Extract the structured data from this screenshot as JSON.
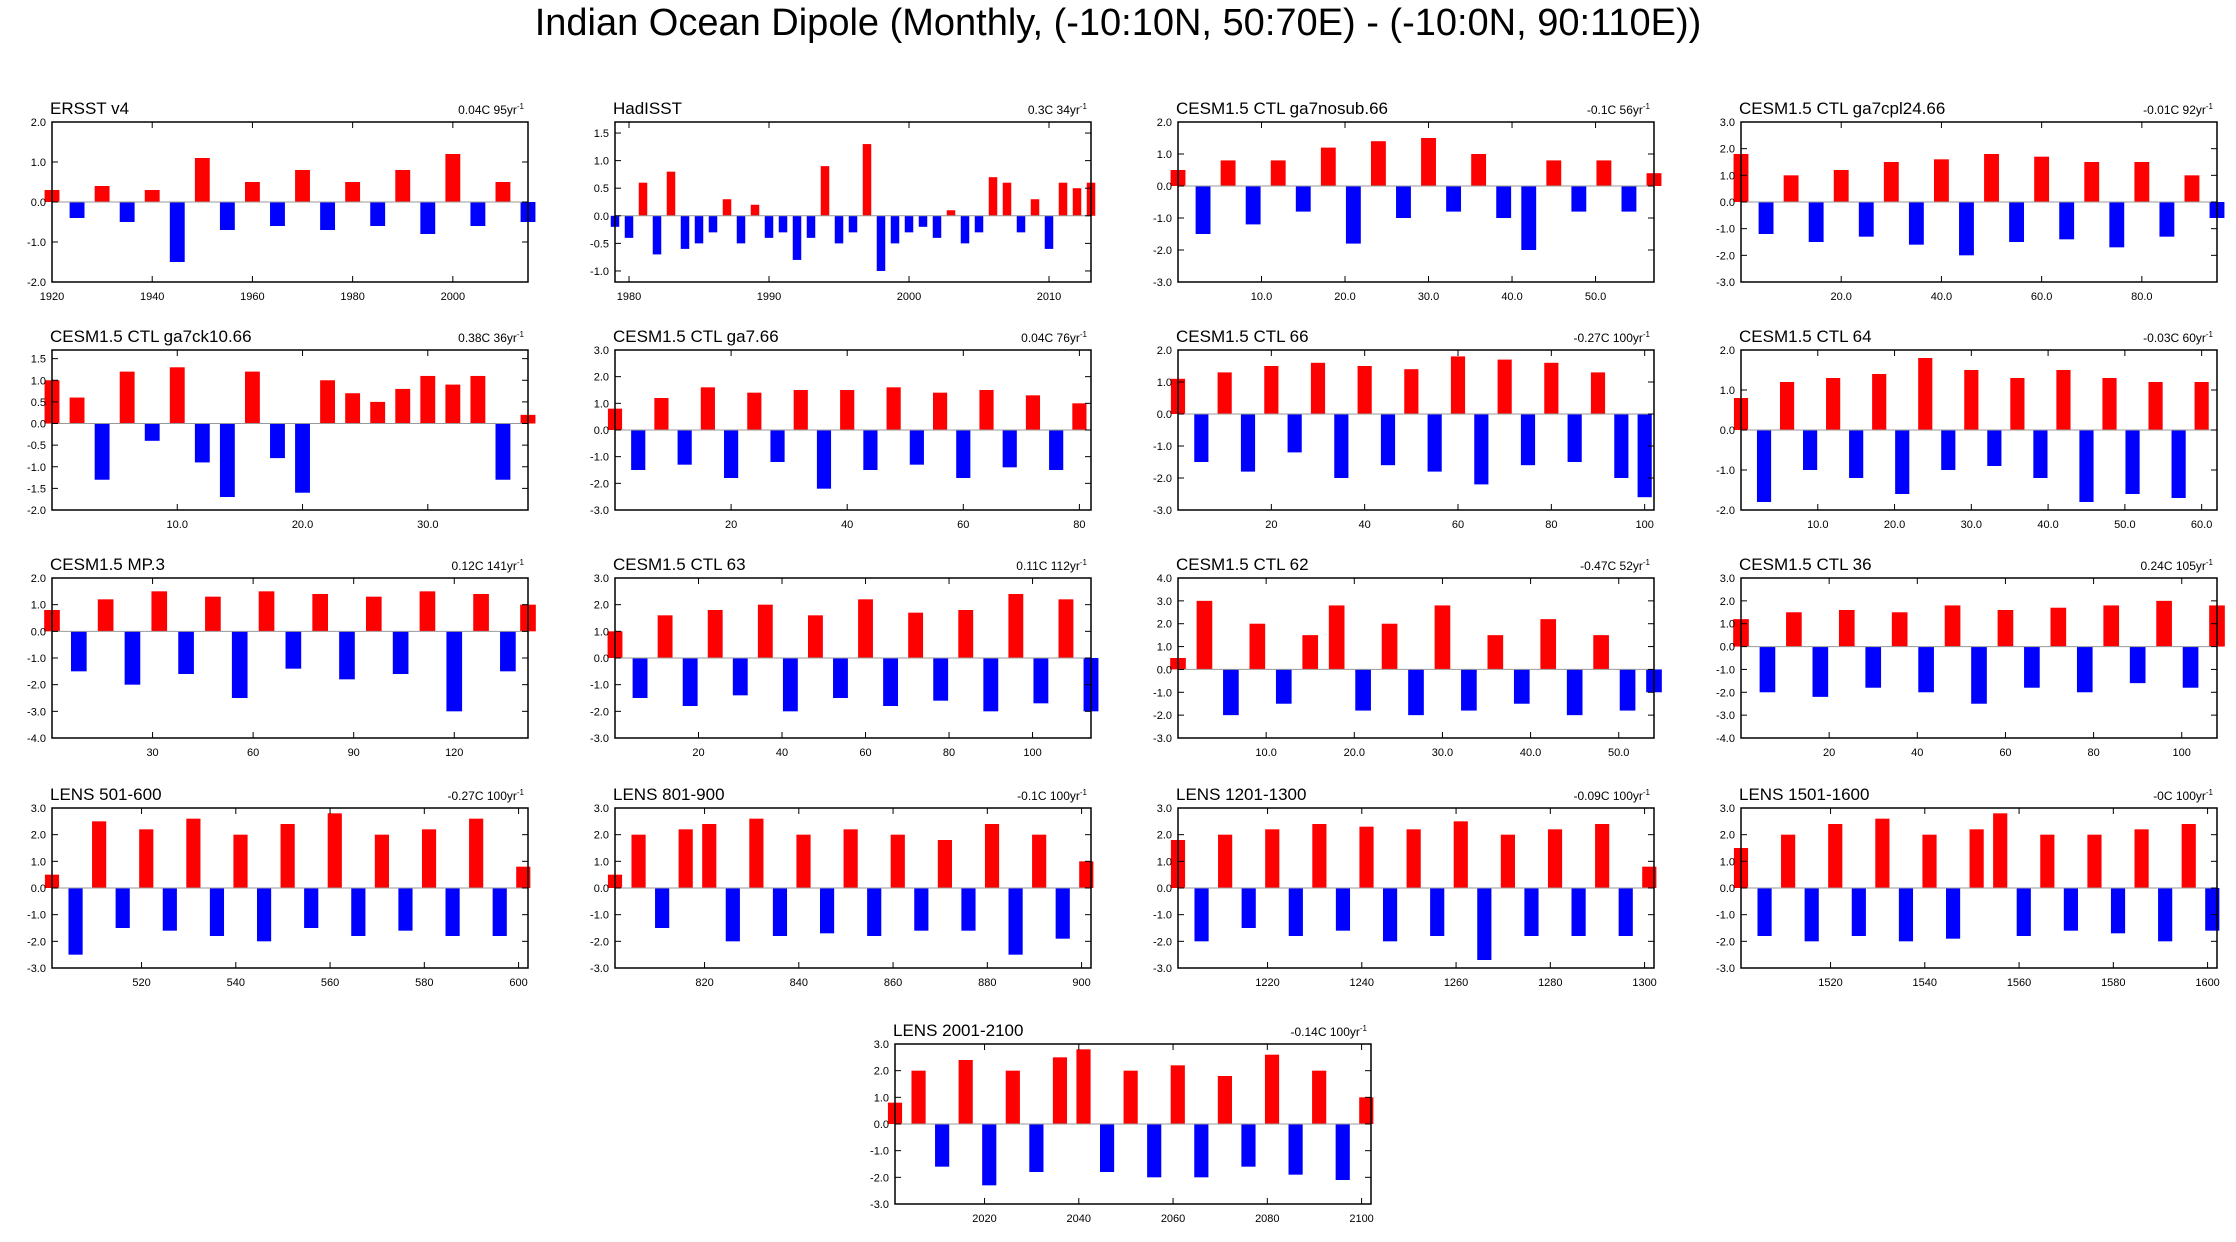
{
  "title": "Indian Ocean Dipole (Monthly, (-10:10N, 50:70E) - (-10:0N, 90:110E))",
  "colors": {
    "positive": "#ff0000",
    "negative": "#0000ff",
    "zero_line": "#999999",
    "frame": "#000000"
  },
  "chart_data": [
    {
      "type": "area",
      "title": "ERSST v4",
      "trend": "0.04C",
      "span": "95yr",
      "x_range": [
        1920,
        2015
      ],
      "ylim": [
        -2.0,
        2.0
      ],
      "y_ticks": [
        "2.0",
        "1.0",
        "0.0",
        "-1.0",
        "-2.0"
      ],
      "x_ticks": [
        "1920",
        "1940",
        "1960",
        "1980",
        "2000"
      ],
      "x": [
        1920,
        1925,
        1930,
        1935,
        1940,
        1945,
        1950,
        1955,
        1960,
        1965,
        1970,
        1975,
        1980,
        1985,
        1990,
        1995,
        2000,
        2005,
        2010,
        2015
      ],
      "y": [
        0.3,
        -0.4,
        0.4,
        -0.5,
        0.3,
        -1.5,
        1.1,
        -0.7,
        0.5,
        -0.6,
        0.8,
        -0.7,
        0.5,
        -0.6,
        0.8,
        -0.8,
        1.2,
        -0.6,
        0.5,
        -0.5
      ]
    },
    {
      "type": "area",
      "title": "HadISST",
      "trend": "0.3C",
      "span": "34yr",
      "x_range": [
        1979,
        2013
      ],
      "ylim": [
        -1.2,
        1.7
      ],
      "y_ticks": [
        "1.5",
        "1.0",
        "0.5",
        "0.0",
        "-0.5",
        "-1.0"
      ],
      "x_ticks": [
        "1980",
        "1990",
        "2000",
        "2010"
      ],
      "x": [
        1979,
        1980,
        1981,
        1982,
        1983,
        1984,
        1985,
        1986,
        1987,
        1988,
        1989,
        1990,
        1991,
        1992,
        1993,
        1994,
        1995,
        1996,
        1997,
        1998,
        1999,
        2000,
        2001,
        2002,
        2003,
        2004,
        2005,
        2006,
        2007,
        2008,
        2009,
        2010,
        2011,
        2012,
        2013
      ],
      "y": [
        -0.2,
        -0.4,
        0.6,
        -0.7,
        0.8,
        -0.6,
        -0.5,
        -0.3,
        0.3,
        -0.5,
        0.2,
        -0.4,
        -0.3,
        -0.8,
        -0.4,
        0.9,
        -0.5,
        -0.3,
        1.3,
        -1.0,
        -0.5,
        -0.3,
        -0.2,
        -0.4,
        0.1,
        -0.5,
        -0.3,
        0.7,
        0.6,
        -0.3,
        0.3,
        -0.6,
        0.6,
        0.5,
        0.6
      ]
    },
    {
      "type": "area",
      "title": "CESM1.5 CTL ga7nosub.66",
      "trend": "-0.1C",
      "span": "56yr",
      "x_range": [
        0,
        57
      ],
      "ylim": [
        -3.0,
        2.0
      ],
      "y_ticks": [
        "2.0",
        "1.0",
        "0.0",
        "-1.0",
        "-2.0",
        "-3.0"
      ],
      "x_ticks": [
        "10.0",
        "20.0",
        "30.0",
        "40.0",
        "50.0"
      ],
      "x": [
        0,
        3,
        6,
        9,
        12,
        15,
        18,
        21,
        24,
        27,
        30,
        33,
        36,
        39,
        42,
        45,
        48,
        51,
        54,
        57
      ],
      "y": [
        0.5,
        -1.5,
        0.8,
        -1.2,
        0.8,
        -0.8,
        1.2,
        -1.8,
        1.4,
        -1.0,
        1.5,
        -0.8,
        1.0,
        -1.0,
        -2.0,
        0.8,
        -0.8,
        0.8,
        -0.8,
        0.4
      ]
    },
    {
      "type": "area",
      "title": "CESM1.5 CTL ga7cpl24.66",
      "trend": "-0.01C",
      "span": "92yr",
      "x_range": [
        0,
        95
      ],
      "ylim": [
        -3.0,
        3.0
      ],
      "y_ticks": [
        "3.0",
        "2.0",
        "1.0",
        "0.0",
        "-1.0",
        "-2.0",
        "-3.0"
      ],
      "x_ticks": [
        "20.0",
        "40.0",
        "60.0",
        "80.0"
      ],
      "x": [
        0,
        5,
        10,
        15,
        20,
        25,
        30,
        35,
        40,
        45,
        50,
        55,
        60,
        65,
        70,
        75,
        80,
        85,
        90,
        95
      ],
      "y": [
        1.8,
        -1.2,
        1.0,
        -1.5,
        1.2,
        -1.3,
        1.5,
        -1.6,
        1.6,
        -2.0,
        1.8,
        -1.5,
        1.7,
        -1.4,
        1.5,
        -1.7,
        1.5,
        -1.3,
        1.0,
        -0.6
      ]
    },
    {
      "type": "area",
      "title": "CESM1.5 CTL ga7ck10.66",
      "trend": "0.38C",
      "span": "36yr",
      "x_range": [
        0,
        38
      ],
      "ylim": [
        -2.0,
        1.7
      ],
      "y_ticks": [
        "1.5",
        "1.0",
        "0.5",
        "0.0",
        "-0.5",
        "-1.0",
        "-1.5",
        "-2.0"
      ],
      "x_ticks": [
        "10.0",
        "20.0",
        "30.0"
      ],
      "x": [
        0,
        2,
        4,
        6,
        8,
        10,
        12,
        14,
        16,
        18,
        20,
        22,
        24,
        26,
        28,
        30,
        32,
        34,
        36,
        38
      ],
      "y": [
        1.0,
        0.6,
        -1.3,
        1.2,
        -0.4,
        1.3,
        -0.9,
        -1.7,
        1.2,
        -0.8,
        -1.6,
        1.0,
        0.7,
        0.5,
        0.8,
        1.1,
        0.9,
        1.1,
        -1.3,
        0.2
      ]
    },
    {
      "type": "area",
      "title": "CESM1.5 CTL ga7.66",
      "trend": "0.04C",
      "span": "76yr",
      "x_range": [
        0,
        82
      ],
      "ylim": [
        -3.0,
        3.0
      ],
      "y_ticks": [
        "3.0",
        "2.0",
        "1.0",
        "0.0",
        "-1.0",
        "-2.0",
        "-3.0"
      ],
      "x_ticks": [
        "20",
        "40",
        "60",
        "80"
      ],
      "x": [
        0,
        4,
        8,
        12,
        16,
        20,
        24,
        28,
        32,
        36,
        40,
        44,
        48,
        52,
        56,
        60,
        64,
        68,
        72,
        76,
        80
      ],
      "y": [
        0.8,
        -1.5,
        1.2,
        -1.3,
        1.6,
        -1.8,
        1.4,
        -1.2,
        1.5,
        -2.2,
        1.5,
        -1.5,
        1.6,
        -1.3,
        1.4,
        -1.8,
        1.5,
        -1.4,
        1.3,
        -1.5,
        1.0
      ]
    },
    {
      "type": "area",
      "title": "CESM1.5 CTL 66",
      "trend": "-0.27C",
      "span": "100yr",
      "x_range": [
        0,
        102
      ],
      "ylim": [
        -3.0,
        2.0
      ],
      "y_ticks": [
        "2.0",
        "1.0",
        "0.0",
        "-1.0",
        "-2.0",
        "-3.0"
      ],
      "x_ticks": [
        "20",
        "40",
        "60",
        "80",
        "100"
      ],
      "x": [
        0,
        5,
        10,
        15,
        20,
        25,
        30,
        35,
        40,
        45,
        50,
        55,
        60,
        65,
        70,
        75,
        80,
        85,
        90,
        95,
        100
      ],
      "y": [
        1.1,
        -1.5,
        1.3,
        -1.8,
        1.5,
        -1.2,
        1.6,
        -2.0,
        1.5,
        -1.6,
        1.4,
        -1.8,
        1.8,
        -2.2,
        1.7,
        -1.6,
        1.6,
        -1.5,
        1.3,
        -2.0,
        -2.6
      ]
    },
    {
      "type": "area",
      "title": "CESM1.5 CTL 64",
      "trend": "-0.03C",
      "span": "60yr",
      "x_range": [
        0,
        62
      ],
      "ylim": [
        -2.0,
        2.0
      ],
      "y_ticks": [
        "2.0",
        "1.0",
        "0.0",
        "-1.0",
        "-2.0"
      ],
      "x_ticks": [
        "10.0",
        "20.0",
        "30.0",
        "40.0",
        "50.0",
        "60.0"
      ],
      "x": [
        0,
        3,
        6,
        9,
        12,
        15,
        18,
        21,
        24,
        27,
        30,
        33,
        36,
        39,
        42,
        45,
        48,
        51,
        54,
        57,
        60
      ],
      "y": [
        0.8,
        -1.8,
        1.2,
        -1.0,
        1.3,
        -1.2,
        1.4,
        -1.6,
        1.8,
        -1.0,
        1.5,
        -0.9,
        1.3,
        -1.2,
        1.5,
        -1.8,
        1.3,
        -1.6,
        1.2,
        -1.7,
        1.2
      ]
    },
    {
      "type": "area",
      "title": "CESM1.5 MP.3",
      "trend": "0.12C",
      "span": "141yr",
      "x_range": [
        0,
        142
      ],
      "ylim": [
        -4.0,
        2.0
      ],
      "y_ticks": [
        "2.0",
        "1.0",
        "0.0",
        "-1.0",
        "-2.0",
        "-3.0",
        "-4.0"
      ],
      "x_ticks": [
        "30",
        "60",
        "90",
        "120"
      ],
      "x": [
        0,
        8,
        16,
        24,
        32,
        40,
        48,
        56,
        64,
        72,
        80,
        88,
        96,
        104,
        112,
        120,
        128,
        136,
        142
      ],
      "y": [
        0.8,
        -1.5,
        1.2,
        -2.0,
        1.5,
        -1.6,
        1.3,
        -2.5,
        1.5,
        -1.4,
        1.4,
        -1.8,
        1.3,
        -1.6,
        1.5,
        -3.0,
        1.4,
        -1.5,
        1.0
      ]
    },
    {
      "type": "area",
      "title": "CESM1.5 CTL 63",
      "trend": "0.11C",
      "span": "112yr",
      "x_range": [
        0,
        114
      ],
      "ylim": [
        -3.0,
        3.0
      ],
      "y_ticks": [
        "3.0",
        "2.0",
        "1.0",
        "0.0",
        "-1.0",
        "-2.0",
        "-3.0"
      ],
      "x_ticks": [
        "20",
        "40",
        "60",
        "80",
        "100"
      ],
      "x": [
        0,
        6,
        12,
        18,
        24,
        30,
        36,
        42,
        48,
        54,
        60,
        66,
        72,
        78,
        84,
        90,
        96,
        102,
        108,
        114
      ],
      "y": [
        1.0,
        -1.5,
        1.6,
        -1.8,
        1.8,
        -1.4,
        2.0,
        -2.0,
        1.6,
        -1.5,
        2.2,
        -1.8,
        1.7,
        -1.6,
        1.8,
        -2.0,
        2.4,
        -1.7,
        2.2,
        -2.0
      ]
    },
    {
      "type": "area",
      "title": "CESM1.5 CTL 62",
      "trend": "-0.47C",
      "span": "52yr",
      "x_range": [
        0,
        54
      ],
      "ylim": [
        -3.0,
        4.0
      ],
      "y_ticks": [
        "4.0",
        "3.0",
        "2.0",
        "1.0",
        "0.0",
        "-1.0",
        "-2.0",
        "-3.0"
      ],
      "x_ticks": [
        "10.0",
        "20.0",
        "30.0",
        "40.0",
        "50.0"
      ],
      "x": [
        0,
        3,
        6,
        9,
        12,
        15,
        18,
        21,
        24,
        27,
        30,
        33,
        36,
        39,
        42,
        45,
        48,
        51,
        54
      ],
      "y": [
        0.5,
        3.0,
        -2.0,
        2.0,
        -1.5,
        1.5,
        2.8,
        -1.8,
        2.0,
        -2.0,
        2.8,
        -1.8,
        1.5,
        -1.5,
        2.2,
        -2.0,
        1.5,
        -1.8,
        -1.0
      ]
    },
    {
      "type": "area",
      "title": "CESM1.5 CTL 36",
      "trend": "0.24C",
      "span": "105yr",
      "x_range": [
        0,
        108
      ],
      "ylim": [
        -4.0,
        3.0
      ],
      "y_ticks": [
        "3.0",
        "2.0",
        "1.0",
        "0.0",
        "-1.0",
        "-2.0",
        "-3.0",
        "-4.0"
      ],
      "x_ticks": [
        "20",
        "40",
        "60",
        "80",
        "100"
      ],
      "x": [
        0,
        6,
        12,
        18,
        24,
        30,
        36,
        42,
        48,
        54,
        60,
        66,
        72,
        78,
        84,
        90,
        96,
        102,
        108
      ],
      "y": [
        1.2,
        -2.0,
        1.5,
        -2.2,
        1.6,
        -1.8,
        1.5,
        -2.0,
        1.8,
        -2.5,
        1.6,
        -1.8,
        1.7,
        -2.0,
        1.8,
        -1.6,
        2.0,
        -1.8,
        1.8
      ]
    },
    {
      "type": "area",
      "title": "LENS 501-600",
      "trend": "-0.27C",
      "span": "100yr",
      "x_range": [
        501,
        602
      ],
      "ylim": [
        -3.0,
        3.0
      ],
      "y_ticks": [
        "3.0",
        "2.0",
        "1.0",
        "0.0",
        "-1.0",
        "-2.0",
        "-3.0"
      ],
      "x_ticks": [
        "520",
        "540",
        "560",
        "580",
        "600"
      ],
      "x": [
        501,
        506,
        511,
        516,
        521,
        526,
        531,
        536,
        541,
        546,
        551,
        556,
        561,
        566,
        571,
        576,
        581,
        586,
        591,
        596,
        601
      ],
      "y": [
        0.5,
        -2.5,
        2.5,
        -1.5,
        2.2,
        -1.6,
        2.6,
        -1.8,
        2.0,
        -2.0,
        2.4,
        -1.5,
        2.8,
        -1.8,
        2.0,
        -1.6,
        2.2,
        -1.8,
        2.6,
        -1.8,
        0.8
      ]
    },
    {
      "type": "area",
      "title": "LENS 801-900",
      "trend": "-0.1C",
      "span": "100yr",
      "x_range": [
        801,
        902
      ],
      "ylim": [
        -3.0,
        3.0
      ],
      "y_ticks": [
        "3.0",
        "2.0",
        "1.0",
        "0.0",
        "-1.0",
        "-2.0",
        "-3.0"
      ],
      "x_ticks": [
        "820",
        "840",
        "860",
        "880",
        "900"
      ],
      "x": [
        801,
        806,
        811,
        816,
        821,
        826,
        831,
        836,
        841,
        846,
        851,
        856,
        861,
        866,
        871,
        876,
        881,
        886,
        891,
        896,
        901
      ],
      "y": [
        0.5,
        2.0,
        -1.5,
        2.2,
        2.4,
        -2.0,
        2.6,
        -1.8,
        2.0,
        -1.7,
        2.2,
        -1.8,
        2.0,
        -1.6,
        1.8,
        -1.6,
        2.4,
        -2.5,
        2.0,
        -1.9,
        1.0
      ]
    },
    {
      "type": "area",
      "title": "LENS 1201-1300",
      "trend": "-0.09C",
      "span": "100yr",
      "x_range": [
        1201,
        1302
      ],
      "ylim": [
        -3.0,
        3.0
      ],
      "y_ticks": [
        "3.0",
        "2.0",
        "1.0",
        "0.0",
        "-1.0",
        "-2.0",
        "-3.0"
      ],
      "x_ticks": [
        "1220",
        "1240",
        "1260",
        "1280",
        "1300"
      ],
      "x": [
        1201,
        1206,
        1211,
        1216,
        1221,
        1226,
        1231,
        1236,
        1241,
        1246,
        1251,
        1256,
        1261,
        1266,
        1271,
        1276,
        1281,
        1286,
        1291,
        1296,
        1301
      ],
      "y": [
        1.8,
        -2.0,
        2.0,
        -1.5,
        2.2,
        -1.8,
        2.4,
        -1.6,
        2.3,
        -2.0,
        2.2,
        -1.8,
        2.5,
        -2.7,
        2.0,
        -1.8,
        2.2,
        -1.8,
        2.4,
        -1.8,
        0.8
      ]
    },
    {
      "type": "area",
      "title": "LENS 1501-1600",
      "trend": "-0C",
      "span": "100yr",
      "x_range": [
        1501,
        1602
      ],
      "ylim": [
        -3.0,
        3.0
      ],
      "y_ticks": [
        "3.0",
        "2.0",
        "1.0",
        "0.0",
        "-1.0",
        "-2.0",
        "-3.0"
      ],
      "x_ticks": [
        "1520",
        "1540",
        "1560",
        "1580",
        "1600"
      ],
      "x": [
        1501,
        1506,
        1511,
        1516,
        1521,
        1526,
        1531,
        1536,
        1541,
        1546,
        1551,
        1556,
        1561,
        1566,
        1571,
        1576,
        1581,
        1586,
        1591,
        1596,
        1601
      ],
      "y": [
        1.5,
        -1.8,
        2.0,
        -2.0,
        2.4,
        -1.8,
        2.6,
        -2.0,
        2.0,
        -1.9,
        2.2,
        2.8,
        -1.8,
        2.0,
        -1.6,
        2.0,
        -1.7,
        2.2,
        -2.0,
        2.4,
        -1.6
      ]
    },
    {
      "type": "area",
      "title": "LENS 2001-2100",
      "trend": "-0.14C",
      "span": "100yr",
      "x_range": [
        2001,
        2102
      ],
      "ylim": [
        -3.0,
        3.0
      ],
      "y_ticks": [
        "3.0",
        "2.0",
        "1.0",
        "0.0",
        "-1.0",
        "-2.0",
        "-3.0"
      ],
      "x_ticks": [
        "2020",
        "2040",
        "2060",
        "2080",
        "2100"
      ],
      "x": [
        2001,
        2006,
        2011,
        2016,
        2021,
        2026,
        2031,
        2036,
        2041,
        2046,
        2051,
        2056,
        2061,
        2066,
        2071,
        2076,
        2081,
        2086,
        2091,
        2096,
        2101
      ],
      "y": [
        0.8,
        2.0,
        -1.6,
        2.4,
        -2.3,
        2.0,
        -1.8,
        2.5,
        2.8,
        -1.8,
        2.0,
        -2.0,
        2.2,
        -2.0,
        1.8,
        -1.6,
        2.6,
        -1.9,
        2.0,
        -2.1,
        1.0
      ]
    }
  ]
}
